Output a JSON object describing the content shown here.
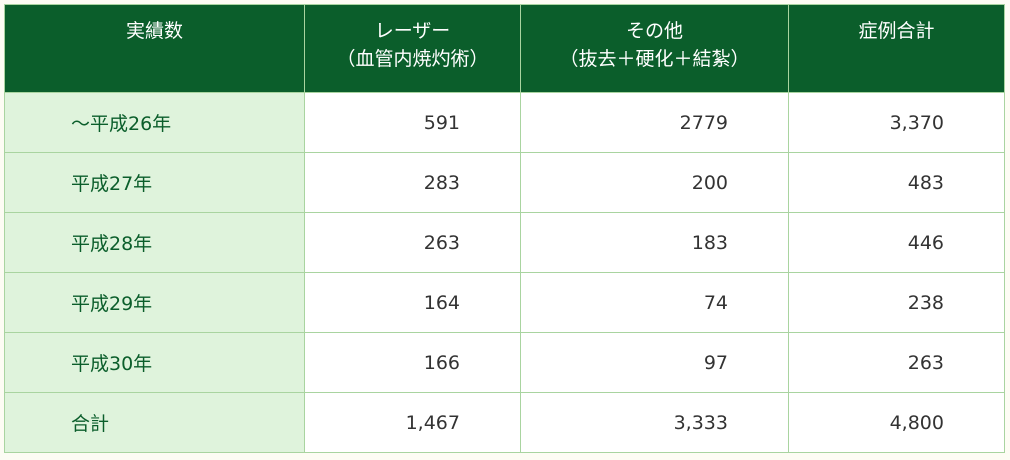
{
  "table": {
    "headers": [
      {
        "main": "実績数",
        "sub": ""
      },
      {
        "main": "レーザー",
        "sub": "（血管内焼灼術）"
      },
      {
        "main": "その他",
        "sub": "（抜去＋硬化＋結紮）"
      },
      {
        "main": "症例合計",
        "sub": ""
      }
    ],
    "rows": [
      {
        "label": "～平成26年",
        "laser": "591",
        "other": "2779",
        "total": "3,370"
      },
      {
        "label": "平成27年",
        "laser": "283",
        "other": "200",
        "total": "483"
      },
      {
        "label": "平成28年",
        "laser": "263",
        "other": "183",
        "total": "446"
      },
      {
        "label": "平成29年",
        "laser": "164",
        "other": "74",
        "total": "238"
      },
      {
        "label": "平成30年",
        "laser": "166",
        "other": "97",
        "total": "263"
      },
      {
        "label": "合計",
        "laser": "1,467",
        "other": "3,333",
        "total": "4,800"
      }
    ]
  },
  "colors": {
    "header_bg": "#0b5e2b",
    "label_bg": "#dff3dc",
    "border": "#a9d4a0"
  }
}
